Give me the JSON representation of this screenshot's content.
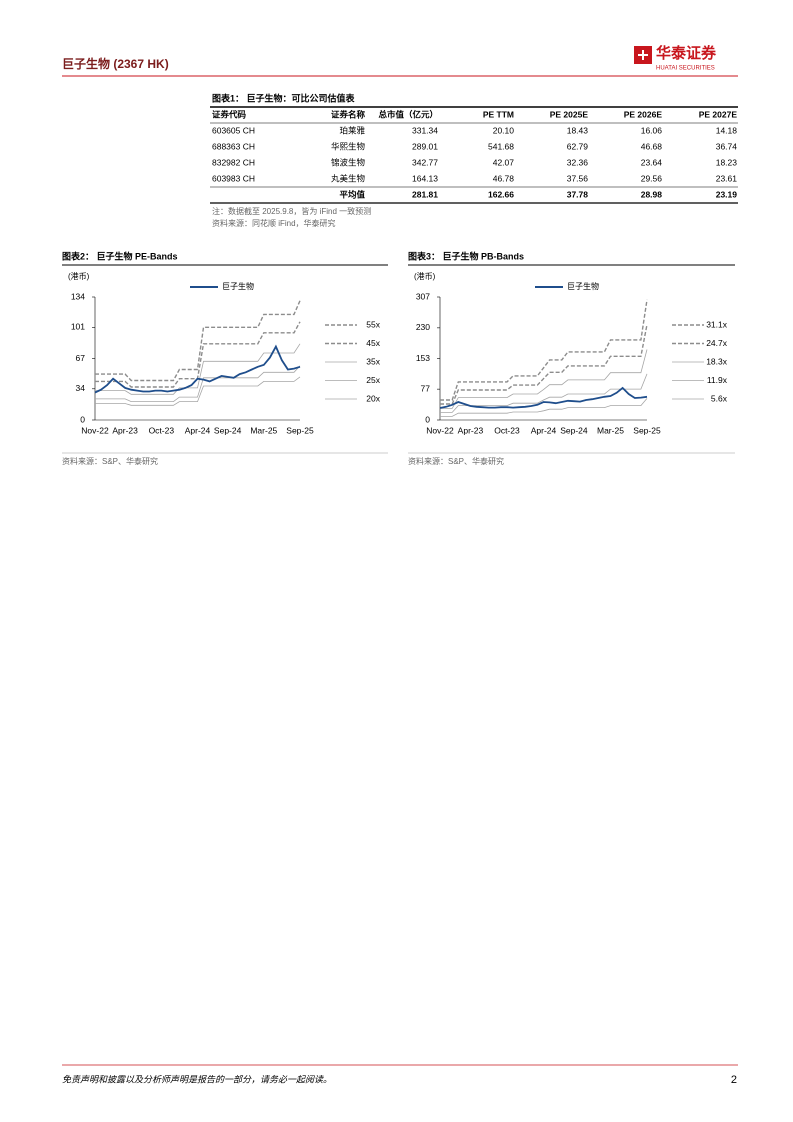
{
  "header": {
    "company": "巨子生物 (2367 HK)",
    "logo_cn": "华泰证券",
    "logo_en": "HUATAI SECURITIES"
  },
  "table": {
    "title": "图表1：  巨子生物：可比公司估值表",
    "columns": [
      "证券代码",
      "证券名称",
      "总市值（亿元）",
      "PE TTM",
      "PE 2025E",
      "PE 2026E",
      "PE 2027E"
    ],
    "rows": [
      [
        "603605 CH",
        "珀莱雅",
        "331.34",
        "20.10",
        "18.43",
        "16.06",
        "14.18"
      ],
      [
        "688363 CH",
        "华熙生物",
        "289.01",
        "541.68",
        "62.79",
        "46.68",
        "36.74"
      ],
      [
        "832982 CH",
        "锦波生物",
        "342.77",
        "42.07",
        "32.36",
        "23.64",
        "18.23"
      ],
      [
        "603983 CH",
        "丸美生物",
        "164.13",
        "46.78",
        "37.56",
        "29.56",
        "23.61"
      ],
      [
        null,
        "平均值",
        "281.81",
        "162.66",
        "37.78",
        "28.98",
        "23.19"
      ]
    ],
    "note": "注：数据截至 2025.9.8，皆为 iFind 一致预测",
    "source": "资料来源：同花顺 iFind，华泰研究"
  },
  "charts": [
    {
      "type": "line",
      "title": "图表2：  巨子生物 PE-Bands",
      "y_unit": "(港币)",
      "categories": [
        "Nov-22",
        null,
        null,
        null,
        null,
        "Apr-23",
        null,
        null,
        null,
        null,
        null,
        "Oct-23",
        null,
        null,
        null,
        null,
        null,
        "Apr-24",
        null,
        null,
        null,
        null,
        "Sep-24",
        null,
        null,
        null,
        null,
        null,
        "Mar-25",
        null,
        null,
        null,
        null,
        null,
        "Sep-25"
      ],
      "ylim": [
        0,
        134
      ],
      "yticks": [
        0,
        34,
        67,
        101,
        134
      ],
      "series": [
        {
          "name": "巨子生物",
          "color": "#1f4e8c",
          "values": [
            30,
            33,
            38,
            45,
            40,
            35,
            33,
            32,
            31,
            31,
            32,
            32,
            31,
            32,
            33,
            35,
            38,
            45,
            44,
            42,
            45,
            48,
            47,
            46,
            50,
            52,
            55,
            58,
            60,
            68,
            80,
            65,
            55,
            56,
            58
          ]
        },
        {
          "name": "55x",
          "color": "#8c8c8c",
          "dash": true,
          "values": [
            50,
            50,
            50,
            50,
            50,
            50,
            43,
            43,
            43,
            43,
            43,
            43,
            43,
            43,
            55,
            55,
            55,
            55,
            101,
            101,
            101,
            101,
            101,
            101,
            101,
            101,
            101,
            101,
            115,
            115,
            115,
            115,
            115,
            115,
            130
          ]
        },
        {
          "name": "45x",
          "color": "#8c8c8c",
          "dash": true,
          "values": [
            42,
            42,
            42,
            42,
            42,
            42,
            36,
            36,
            36,
            36,
            36,
            36,
            36,
            36,
            45,
            45,
            45,
            45,
            83,
            83,
            83,
            83,
            83,
            83,
            83,
            83,
            83,
            83,
            95,
            95,
            95,
            95,
            95,
            95,
            107
          ]
        },
        {
          "name": "35x",
          "color": "#a6a6a6",
          "values": [
            32,
            32,
            32,
            32,
            32,
            32,
            28,
            28,
            28,
            28,
            28,
            28,
            28,
            28,
            35,
            35,
            35,
            35,
            64,
            64,
            64,
            64,
            64,
            64,
            64,
            64,
            64,
            64,
            73,
            73,
            73,
            73,
            73,
            73,
            83
          ]
        },
        {
          "name": "25x",
          "color": "#a6a6a6",
          "values": [
            23,
            23,
            23,
            23,
            23,
            23,
            20,
            20,
            20,
            20,
            20,
            20,
            20,
            20,
            25,
            25,
            25,
            25,
            46,
            46,
            46,
            46,
            46,
            46,
            46,
            46,
            46,
            46,
            52,
            52,
            52,
            52,
            52,
            52,
            59
          ]
        },
        {
          "name": "20x",
          "color": "#a6a6a6",
          "values": [
            18,
            18,
            18,
            18,
            18,
            18,
            16,
            16,
            16,
            16,
            16,
            16,
            16,
            16,
            20,
            20,
            20,
            20,
            37,
            37,
            37,
            37,
            37,
            37,
            37,
            37,
            37,
            37,
            42,
            42,
            42,
            42,
            42,
            42,
            47
          ]
        }
      ],
      "source": "资料来源：S&P、华泰研究"
    },
    {
      "type": "line",
      "title": "图表3：  巨子生物 PB-Bands",
      "y_unit": "(港币)",
      "categories": [
        "Nov-22",
        null,
        null,
        null,
        null,
        "Apr-23",
        null,
        null,
        null,
        null,
        null,
        "Oct-23",
        null,
        null,
        null,
        null,
        null,
        "Apr-24",
        null,
        null,
        null,
        null,
        "Sep-24",
        null,
        null,
        null,
        null,
        null,
        "Mar-25",
        null,
        null,
        null,
        null,
        null,
        "Sep-25"
      ],
      "ylim": [
        0,
        307
      ],
      "yticks": [
        0,
        77,
        153,
        230,
        307
      ],
      "series": [
        {
          "name": "巨子生物",
          "color": "#1f4e8c",
          "values": [
            30,
            33,
            38,
            45,
            40,
            35,
            33,
            32,
            31,
            31,
            32,
            32,
            31,
            32,
            33,
            35,
            38,
            45,
            44,
            42,
            45,
            48,
            47,
            46,
            50,
            52,
            55,
            58,
            60,
            68,
            80,
            65,
            55,
            56,
            58
          ]
        },
        {
          "name": "31.1x",
          "color": "#8c8c8c",
          "dash": true,
          "values": [
            50,
            50,
            50,
            95,
            95,
            95,
            95,
            95,
            95,
            95,
            95,
            95,
            110,
            110,
            110,
            110,
            110,
            130,
            150,
            150,
            150,
            170,
            170,
            170,
            170,
            170,
            170,
            170,
            200,
            200,
            200,
            200,
            200,
            200,
            300
          ]
        },
        {
          "name": "24.7x",
          "color": "#8c8c8c",
          "dash": true,
          "values": [
            40,
            40,
            40,
            75,
            75,
            75,
            75,
            75,
            75,
            75,
            75,
            75,
            87,
            87,
            87,
            87,
            87,
            103,
            119,
            119,
            119,
            135,
            135,
            135,
            135,
            135,
            135,
            135,
            159,
            159,
            159,
            159,
            159,
            159,
            238
          ]
        },
        {
          "name": "18.3x",
          "color": "#a6a6a6",
          "values": [
            29,
            29,
            29,
            56,
            56,
            56,
            56,
            56,
            56,
            56,
            56,
            56,
            65,
            65,
            65,
            65,
            65,
            76,
            88,
            88,
            88,
            100,
            100,
            100,
            100,
            100,
            100,
            100,
            118,
            118,
            118,
            118,
            118,
            118,
            176
          ]
        },
        {
          "name": "11.9x",
          "color": "#a6a6a6",
          "values": [
            19,
            19,
            19,
            36,
            36,
            36,
            36,
            36,
            36,
            36,
            36,
            36,
            42,
            42,
            42,
            42,
            42,
            50,
            57,
            57,
            57,
            65,
            65,
            65,
            65,
            65,
            65,
            65,
            77,
            77,
            77,
            77,
            77,
            77,
            115
          ]
        },
        {
          "name": "5.6x",
          "color": "#a6a6a6",
          "values": [
            9,
            9,
            9,
            17,
            17,
            17,
            17,
            17,
            17,
            17,
            17,
            17,
            20,
            20,
            20,
            20,
            20,
            23,
            27,
            27,
            27,
            31,
            31,
            31,
            31,
            31,
            31,
            31,
            36,
            36,
            36,
            36,
            36,
            36,
            54
          ]
        }
      ],
      "source": "资料来源：S&P、华泰研究"
    }
  ],
  "footer": {
    "disclaimer": "免责声明和披露以及分析师声明是报告的一部分，请务必一起阅读。",
    "page": "2"
  }
}
